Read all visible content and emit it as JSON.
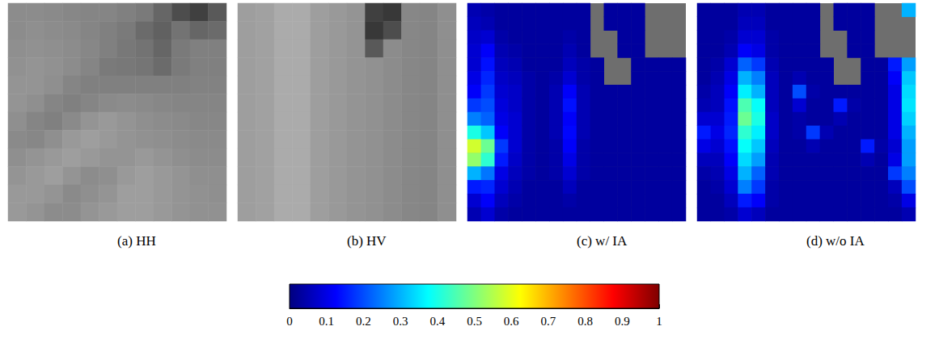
{
  "chart_data": [
    {
      "type": "image",
      "title": "(a) HH",
      "cells": [
        [
          0.55,
          0.55,
          0.54,
          0.53,
          0.52,
          0.52,
          0.5,
          0.48,
          0.4,
          0.3,
          0.25,
          0.35
        ],
        [
          0.55,
          0.56,
          0.55,
          0.54,
          0.52,
          0.5,
          0.48,
          0.42,
          0.38,
          0.45,
          0.4,
          0.42
        ],
        [
          0.56,
          0.57,
          0.56,
          0.55,
          0.53,
          0.5,
          0.47,
          0.45,
          0.4,
          0.48,
          0.5,
          0.5
        ],
        [
          0.57,
          0.58,
          0.57,
          0.55,
          0.52,
          0.48,
          0.47,
          0.46,
          0.42,
          0.48,
          0.5,
          0.5
        ],
        [
          0.58,
          0.58,
          0.56,
          0.52,
          0.5,
          0.5,
          0.5,
          0.5,
          0.5,
          0.5,
          0.51,
          0.51
        ],
        [
          0.58,
          0.56,
          0.52,
          0.5,
          0.52,
          0.54,
          0.55,
          0.54,
          0.53,
          0.52,
          0.52,
          0.52
        ],
        [
          0.56,
          0.52,
          0.5,
          0.54,
          0.58,
          0.6,
          0.58,
          0.56,
          0.55,
          0.54,
          0.53,
          0.53
        ],
        [
          0.54,
          0.53,
          0.56,
          0.6,
          0.62,
          0.6,
          0.58,
          0.57,
          0.56,
          0.55,
          0.54,
          0.54
        ],
        [
          0.56,
          0.58,
          0.6,
          0.62,
          0.6,
          0.58,
          0.58,
          0.6,
          0.58,
          0.56,
          0.55,
          0.55
        ],
        [
          0.58,
          0.6,
          0.62,
          0.58,
          0.55,
          0.56,
          0.6,
          0.62,
          0.6,
          0.58,
          0.56,
          0.56
        ],
        [
          0.6,
          0.6,
          0.58,
          0.54,
          0.56,
          0.58,
          0.62,
          0.62,
          0.6,
          0.58,
          0.57,
          0.56
        ],
        [
          0.6,
          0.58,
          0.55,
          0.55,
          0.58,
          0.6,
          0.62,
          0.62,
          0.6,
          0.58,
          0.57,
          0.57
        ]
      ]
    },
    {
      "type": "image",
      "title": "(b) HV",
      "cells": [
        [
          0.62,
          0.63,
          0.67,
          0.67,
          0.62,
          0.6,
          0.58,
          0.25,
          0.22,
          0.53,
          0.52,
          0.56
        ],
        [
          0.62,
          0.63,
          0.67,
          0.67,
          0.62,
          0.6,
          0.58,
          0.22,
          0.3,
          0.53,
          0.52,
          0.56
        ],
        [
          0.62,
          0.63,
          0.67,
          0.67,
          0.62,
          0.6,
          0.58,
          0.35,
          0.55,
          0.53,
          0.52,
          0.56
        ],
        [
          0.62,
          0.63,
          0.67,
          0.67,
          0.62,
          0.6,
          0.58,
          0.57,
          0.55,
          0.53,
          0.52,
          0.56
        ],
        [
          0.62,
          0.63,
          0.67,
          0.67,
          0.62,
          0.6,
          0.58,
          0.57,
          0.55,
          0.53,
          0.52,
          0.56
        ],
        [
          0.62,
          0.63,
          0.67,
          0.67,
          0.62,
          0.6,
          0.58,
          0.57,
          0.55,
          0.53,
          0.52,
          0.56
        ],
        [
          0.62,
          0.63,
          0.67,
          0.67,
          0.62,
          0.6,
          0.58,
          0.57,
          0.55,
          0.53,
          0.52,
          0.56
        ],
        [
          0.62,
          0.63,
          0.67,
          0.67,
          0.62,
          0.6,
          0.58,
          0.57,
          0.55,
          0.53,
          0.52,
          0.56
        ],
        [
          0.62,
          0.63,
          0.67,
          0.67,
          0.62,
          0.6,
          0.58,
          0.57,
          0.55,
          0.53,
          0.52,
          0.56
        ],
        [
          0.62,
          0.63,
          0.67,
          0.67,
          0.62,
          0.6,
          0.58,
          0.57,
          0.55,
          0.53,
          0.52,
          0.56
        ],
        [
          0.62,
          0.63,
          0.67,
          0.67,
          0.62,
          0.6,
          0.58,
          0.57,
          0.55,
          0.53,
          0.52,
          0.56
        ],
        [
          0.62,
          0.63,
          0.67,
          0.67,
          0.62,
          0.6,
          0.58,
          0.57,
          0.55,
          0.53,
          0.52,
          0.56
        ]
      ]
    },
    {
      "type": "heatmap",
      "title": "(c) w/ IA",
      "cells": [
        [
          0.05,
          0.04,
          0.03,
          0.03,
          0.03,
          0.03,
          0.03,
          0.03,
          0.03,
          null,
          0.03,
          0.03,
          0.03,
          null,
          null,
          null
        ],
        [
          0.06,
          0.05,
          0.03,
          0.03,
          0.03,
          0.03,
          0.03,
          0.03,
          0.03,
          null,
          0.03,
          0.03,
          0.03,
          null,
          null,
          null
        ],
        [
          0.07,
          0.08,
          0.04,
          0.03,
          0.03,
          0.03,
          0.03,
          0.04,
          0.03,
          null,
          null,
          0.03,
          0.03,
          null,
          null,
          null
        ],
        [
          0.08,
          0.12,
          0.05,
          0.04,
          0.03,
          0.03,
          0.03,
          0.05,
          0.03,
          null,
          null,
          0.03,
          0.03,
          null,
          null,
          null
        ],
        [
          0.08,
          0.14,
          0.06,
          0.05,
          0.03,
          0.03,
          0.03,
          0.06,
          0.04,
          0.03,
          null,
          null,
          0.03,
          0.03,
          0.03,
          0.03
        ],
        [
          0.1,
          0.16,
          0.07,
          0.06,
          0.04,
          0.03,
          0.04,
          0.08,
          0.04,
          0.03,
          null,
          null,
          0.03,
          0.03,
          0.03,
          0.03
        ],
        [
          0.12,
          0.18,
          0.08,
          0.07,
          0.04,
          0.03,
          0.05,
          0.12,
          0.05,
          0.03,
          0.03,
          0.03,
          0.03,
          0.03,
          0.03,
          0.03
        ],
        [
          0.18,
          0.2,
          0.09,
          0.07,
          0.04,
          0.03,
          0.05,
          0.14,
          0.05,
          0.03,
          0.03,
          0.03,
          0.03,
          0.03,
          0.03,
          0.03
        ],
        [
          0.25,
          0.22,
          0.1,
          0.08,
          0.04,
          0.03,
          0.05,
          0.12,
          0.05,
          0.03,
          0.03,
          0.03,
          0.03,
          0.03,
          0.03,
          0.03
        ],
        [
          0.4,
          0.32,
          0.12,
          0.08,
          0.04,
          0.03,
          0.05,
          0.13,
          0.05,
          0.03,
          0.03,
          0.03,
          0.03,
          0.03,
          0.03,
          0.03
        ],
        [
          0.58,
          0.48,
          0.18,
          0.08,
          0.04,
          0.03,
          0.04,
          0.12,
          0.04,
          0.03,
          0.03,
          0.03,
          0.03,
          0.03,
          0.03,
          0.03
        ],
        [
          0.52,
          0.42,
          0.15,
          0.07,
          0.04,
          0.03,
          0.04,
          0.1,
          0.04,
          0.03,
          0.03,
          0.03,
          0.03,
          0.03,
          0.03,
          0.03
        ],
        [
          0.3,
          0.24,
          0.1,
          0.06,
          0.04,
          0.03,
          0.04,
          0.08,
          0.04,
          0.03,
          0.03,
          0.03,
          0.03,
          0.03,
          0.03,
          0.03
        ],
        [
          0.15,
          0.16,
          0.08,
          0.05,
          0.03,
          0.03,
          0.03,
          0.06,
          0.03,
          0.03,
          0.03,
          0.03,
          0.03,
          0.03,
          0.03,
          0.03
        ],
        [
          0.08,
          0.12,
          0.06,
          0.04,
          0.03,
          0.03,
          0.03,
          0.04,
          0.03,
          0.03,
          0.03,
          0.03,
          0.03,
          0.03,
          0.03,
          0.03
        ],
        [
          0.05,
          0.08,
          0.04,
          0.03,
          0.03,
          0.03,
          0.03,
          0.03,
          0.03,
          0.03,
          0.03,
          0.03,
          0.03,
          0.03,
          0.03,
          0.03
        ]
      ]
    },
    {
      "type": "heatmap",
      "title": "(d) w/o IA",
      "cells": [
        [
          0.03,
          0.03,
          0.03,
          0.05,
          0.05,
          0.03,
          0.03,
          0.03,
          0.03,
          null,
          0.03,
          0.03,
          0.03,
          null,
          null,
          0.3
        ],
        [
          0.03,
          0.03,
          0.03,
          0.06,
          0.06,
          0.03,
          0.03,
          0.03,
          0.03,
          null,
          0.03,
          0.03,
          0.03,
          null,
          null,
          null
        ],
        [
          0.03,
          0.03,
          0.04,
          0.08,
          0.08,
          0.04,
          0.03,
          0.03,
          0.03,
          null,
          null,
          0.03,
          0.03,
          null,
          null,
          null
        ],
        [
          0.03,
          0.03,
          0.05,
          0.12,
          0.1,
          0.04,
          0.03,
          0.03,
          0.03,
          null,
          null,
          0.03,
          0.03,
          null,
          null,
          null
        ],
        [
          0.03,
          0.04,
          0.08,
          0.22,
          0.18,
          0.05,
          0.03,
          0.03,
          0.03,
          0.03,
          null,
          null,
          0.03,
          0.03,
          0.15,
          0.28
        ],
        [
          0.03,
          0.05,
          0.1,
          0.3,
          0.25,
          0.06,
          0.03,
          0.05,
          0.03,
          0.03,
          null,
          null,
          0.03,
          0.03,
          0.12,
          0.32
        ],
        [
          0.04,
          0.06,
          0.12,
          0.36,
          0.3,
          0.06,
          0.03,
          0.2,
          0.04,
          0.03,
          0.03,
          0.03,
          0.03,
          0.03,
          0.1,
          0.34
        ],
        [
          0.05,
          0.06,
          0.14,
          0.45,
          0.38,
          0.06,
          0.03,
          0.08,
          0.03,
          0.03,
          0.15,
          0.04,
          0.03,
          0.03,
          0.1,
          0.35
        ],
        [
          0.08,
          0.08,
          0.15,
          0.48,
          0.4,
          0.07,
          0.03,
          0.04,
          0.03,
          0.03,
          0.05,
          0.03,
          0.03,
          0.03,
          0.1,
          0.33
        ],
        [
          0.15,
          0.1,
          0.16,
          0.42,
          0.36,
          0.07,
          0.03,
          0.04,
          0.18,
          0.05,
          0.03,
          0.03,
          0.03,
          0.03,
          0.1,
          0.3
        ],
        [
          0.1,
          0.08,
          0.14,
          0.38,
          0.32,
          0.06,
          0.03,
          0.03,
          0.05,
          0.03,
          0.03,
          0.03,
          0.15,
          0.04,
          0.08,
          0.28
        ],
        [
          0.06,
          0.06,
          0.12,
          0.34,
          0.28,
          0.05,
          0.03,
          0.03,
          0.03,
          0.03,
          0.03,
          0.03,
          0.05,
          0.03,
          0.1,
          0.28
        ],
        [
          0.04,
          0.05,
          0.1,
          0.3,
          0.22,
          0.05,
          0.03,
          0.03,
          0.03,
          0.03,
          0.03,
          0.03,
          0.03,
          0.03,
          0.18,
          0.25
        ],
        [
          0.03,
          0.04,
          0.08,
          0.25,
          0.18,
          0.04,
          0.03,
          0.03,
          0.03,
          0.03,
          0.03,
          0.03,
          0.03,
          0.03,
          0.06,
          0.2
        ],
        [
          0.03,
          0.03,
          0.06,
          0.15,
          0.12,
          0.04,
          0.03,
          0.03,
          0.03,
          0.03,
          0.03,
          0.03,
          0.03,
          0.03,
          0.04,
          0.1
        ],
        [
          0.03,
          0.03,
          0.04,
          0.08,
          0.06,
          0.03,
          0.03,
          0.03,
          0.03,
          0.03,
          0.03,
          0.03,
          0.03,
          0.03,
          0.03,
          0.05
        ]
      ]
    }
  ],
  "colorbar": {
    "range": [
      0,
      1
    ],
    "ticks": [
      0,
      0.1,
      0.2,
      0.3,
      0.4,
      0.5,
      0.6,
      0.7,
      0.8,
      0.9,
      1
    ]
  }
}
